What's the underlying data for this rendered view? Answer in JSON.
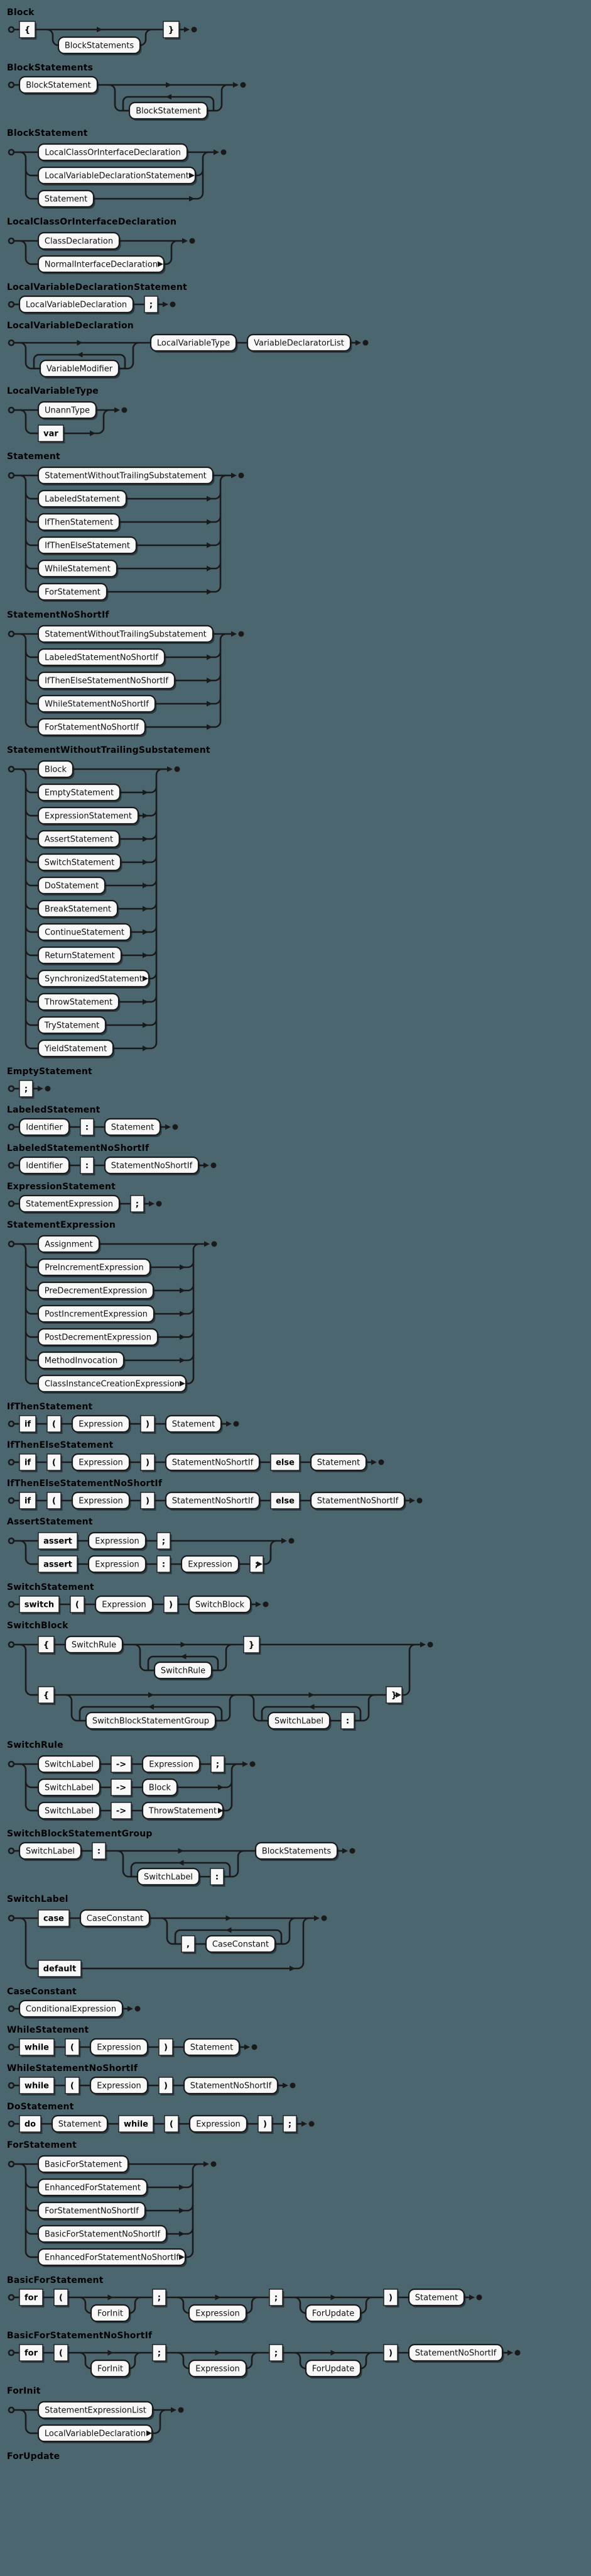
{
  "page": {
    "background": "#4c6670",
    "rail_color": "#1a1a1a",
    "box_fill": "#f8f8f8",
    "title_color": "#000000",
    "legend": {
      "start_icon": "start-circle",
      "end_icon": "end-dot",
      "nonterminal_shape": "rounded-box",
      "terminal_shape": "square-box"
    }
  },
  "rules": [
    {
      "name": "Block",
      "d": [
        "seq",
        [
          [
            "t",
            "{"
          ],
          [
            "opt",
            [
              "nt",
              "BlockStatements"
            ]
          ],
          [
            "t",
            "}"
          ]
        ]
      ]
    },
    {
      "name": "BlockStatements",
      "d": [
        "seq",
        [
          [
            "nt",
            "BlockStatement"
          ],
          [
            "opt",
            [
              "loop",
              [
                "nt",
                "BlockStatement"
              ]
            ]
          ]
        ]
      ]
    },
    {
      "name": "BlockStatement",
      "d": [
        "ch",
        [
          [
            "nt",
            "LocalClassOrInterfaceDeclaration"
          ],
          [
            "nt",
            "LocalVariableDeclarationStatement"
          ],
          [
            "nt",
            "Statement"
          ]
        ]
      ]
    },
    {
      "name": "LocalClassOrInterfaceDeclaration",
      "d": [
        "ch",
        [
          [
            "nt",
            "ClassDeclaration"
          ],
          [
            "nt",
            "NormalInterfaceDeclaration"
          ]
        ]
      ]
    },
    {
      "name": "LocalVariableDeclarationStatement",
      "d": [
        "seq",
        [
          [
            "nt",
            "LocalVariableDeclaration"
          ],
          [
            "t",
            ";"
          ]
        ]
      ]
    },
    {
      "name": "LocalVariableDeclaration",
      "d": [
        "seq",
        [
          [
            "opt",
            [
              "loop",
              [
                "nt",
                "VariableModifier"
              ]
            ]
          ],
          [
            "nt",
            "LocalVariableType"
          ],
          [
            "nt",
            "VariableDeclaratorList"
          ]
        ]
      ]
    },
    {
      "name": "LocalVariableType",
      "d": [
        "ch",
        [
          [
            "nt",
            "UnannType"
          ],
          [
            "t",
            "var"
          ]
        ]
      ]
    },
    {
      "name": "Statement",
      "d": [
        "ch",
        [
          [
            "nt",
            "StatementWithoutTrailingSubstatement"
          ],
          [
            "nt",
            "LabeledStatement"
          ],
          [
            "nt",
            "IfThenStatement"
          ],
          [
            "nt",
            "IfThenElseStatement"
          ],
          [
            "nt",
            "WhileStatement"
          ],
          [
            "nt",
            "ForStatement"
          ]
        ]
      ]
    },
    {
      "name": "StatementNoShortIf",
      "d": [
        "ch",
        [
          [
            "nt",
            "StatementWithoutTrailingSubstatement"
          ],
          [
            "nt",
            "LabeledStatementNoShortIf"
          ],
          [
            "nt",
            "IfThenElseStatementNoShortIf"
          ],
          [
            "nt",
            "WhileStatementNoShortIf"
          ],
          [
            "nt",
            "ForStatementNoShortIf"
          ]
        ]
      ]
    },
    {
      "name": "StatementWithoutTrailingSubstatement",
      "d": [
        "ch",
        [
          [
            "nt",
            "Block"
          ],
          [
            "nt",
            "EmptyStatement"
          ],
          [
            "nt",
            "ExpressionStatement"
          ],
          [
            "nt",
            "AssertStatement"
          ],
          [
            "nt",
            "SwitchStatement"
          ],
          [
            "nt",
            "DoStatement"
          ],
          [
            "nt",
            "BreakStatement"
          ],
          [
            "nt",
            "ContinueStatement"
          ],
          [
            "nt",
            "ReturnStatement"
          ],
          [
            "nt",
            "SynchronizedStatement"
          ],
          [
            "nt",
            "ThrowStatement"
          ],
          [
            "nt",
            "TryStatement"
          ],
          [
            "nt",
            "YieldStatement"
          ]
        ]
      ]
    },
    {
      "name": "EmptyStatement",
      "d": [
        "seq",
        [
          [
            "t",
            ";"
          ]
        ]
      ]
    },
    {
      "name": "LabeledStatement",
      "d": [
        "seq",
        [
          [
            "nt",
            "Identifier"
          ],
          [
            "t",
            ":"
          ],
          [
            "nt",
            "Statement"
          ]
        ]
      ]
    },
    {
      "name": "LabeledStatementNoShortIf",
      "d": [
        "seq",
        [
          [
            "nt",
            "Identifier"
          ],
          [
            "t",
            ":"
          ],
          [
            "nt",
            "StatementNoShortIf"
          ]
        ]
      ]
    },
    {
      "name": "ExpressionStatement",
      "d": [
        "seq",
        [
          [
            "nt",
            "StatementExpression"
          ],
          [
            "t",
            ";"
          ]
        ]
      ]
    },
    {
      "name": "StatementExpression",
      "d": [
        "ch",
        [
          [
            "nt",
            "Assignment"
          ],
          [
            "nt",
            "PreIncrementExpression"
          ],
          [
            "nt",
            "PreDecrementExpression"
          ],
          [
            "nt",
            "PostIncrementExpression"
          ],
          [
            "nt",
            "PostDecrementExpression"
          ],
          [
            "nt",
            "MethodInvocation"
          ],
          [
            "nt",
            "ClassInstanceCreationExpression"
          ]
        ]
      ]
    },
    {
      "name": "IfThenStatement",
      "d": [
        "seq",
        [
          [
            "t",
            "if"
          ],
          [
            "t",
            "("
          ],
          [
            "nt",
            "Expression"
          ],
          [
            "t",
            ")"
          ],
          [
            "nt",
            "Statement"
          ]
        ]
      ]
    },
    {
      "name": "IfThenElseStatement",
      "d": [
        "seq",
        [
          [
            "t",
            "if"
          ],
          [
            "t",
            "("
          ],
          [
            "nt",
            "Expression"
          ],
          [
            "t",
            ")"
          ],
          [
            "nt",
            "StatementNoShortIf"
          ],
          [
            "t",
            "else"
          ],
          [
            "nt",
            "Statement"
          ]
        ]
      ]
    },
    {
      "name": "IfThenElseStatementNoShortIf",
      "d": [
        "seq",
        [
          [
            "t",
            "if"
          ],
          [
            "t",
            "("
          ],
          [
            "nt",
            "Expression"
          ],
          [
            "t",
            ")"
          ],
          [
            "nt",
            "StatementNoShortIf"
          ],
          [
            "t",
            "else"
          ],
          [
            "nt",
            "StatementNoShortIf"
          ]
        ]
      ]
    },
    {
      "name": "AssertStatement",
      "d": [
        "ch",
        [
          [
            "seq",
            [
              [
                "t",
                "assert"
              ],
              [
                "nt",
                "Expression"
              ],
              [
                "t",
                ";"
              ]
            ]
          ],
          [
            "seq",
            [
              [
                "t",
                "assert"
              ],
              [
                "nt",
                "Expression"
              ],
              [
                "t",
                ":"
              ],
              [
                "nt",
                "Expression"
              ],
              [
                "t",
                ";"
              ]
            ]
          ]
        ]
      ]
    },
    {
      "name": "SwitchStatement",
      "d": [
        "seq",
        [
          [
            "t",
            "switch"
          ],
          [
            "t",
            "("
          ],
          [
            "nt",
            "Expression"
          ],
          [
            "t",
            ")"
          ],
          [
            "nt",
            "SwitchBlock"
          ]
        ]
      ]
    },
    {
      "name": "SwitchBlock",
      "d": [
        "ch",
        [
          [
            "seq",
            [
              [
                "t",
                "{"
              ],
              [
                "nt",
                "SwitchRule"
              ],
              [
                "opt",
                [
                  "loop",
                  [
                    "nt",
                    "SwitchRule"
                  ]
                ]
              ],
              [
                "t",
                "}"
              ]
            ]
          ],
          [
            "seq",
            [
              [
                "t",
                "{"
              ],
              [
                "opt",
                [
                  "loop",
                  [
                    "nt",
                    "SwitchBlockStatementGroup"
                  ]
                ]
              ],
              [
                "opt",
                [
                  "loop",
                  [
                    "seq",
                    [
                      [
                        "nt",
                        "SwitchLabel"
                      ],
                      [
                        "t",
                        ":"
                      ]
                    ]
                  ]
                ]
              ],
              [
                "t",
                "}"
              ]
            ]
          ]
        ]
      ]
    },
    {
      "name": "SwitchRule",
      "d": [
        "ch",
        [
          [
            "seq",
            [
              [
                "nt",
                "SwitchLabel"
              ],
              [
                "t",
                "->"
              ],
              [
                "nt",
                "Expression"
              ],
              [
                "t",
                ";"
              ]
            ]
          ],
          [
            "seq",
            [
              [
                "nt",
                "SwitchLabel"
              ],
              [
                "t",
                "->"
              ],
              [
                "nt",
                "Block"
              ]
            ]
          ],
          [
            "seq",
            [
              [
                "nt",
                "SwitchLabel"
              ],
              [
                "t",
                "->"
              ],
              [
                "nt",
                "ThrowStatement"
              ]
            ]
          ]
        ]
      ]
    },
    {
      "name": "SwitchBlockStatementGroup",
      "d": [
        "seq",
        [
          [
            "nt",
            "SwitchLabel"
          ],
          [
            "t",
            ":"
          ],
          [
            "opt",
            [
              "loop",
              [
                "seq",
                [
                  [
                    "nt",
                    "SwitchLabel"
                  ],
                  [
                    "t",
                    ":"
                  ]
                ]
              ]
            ]
          ],
          [
            "nt",
            "BlockStatements"
          ]
        ]
      ]
    },
    {
      "name": "SwitchLabel",
      "d": [
        "ch",
        [
          [
            "seq",
            [
              [
                "t",
                "case"
              ],
              [
                "nt",
                "CaseConstant"
              ],
              [
                "opt",
                [
                  "loop",
                  [
                    "seq",
                    [
                      [
                        "t",
                        ","
                      ],
                      [
                        "nt",
                        "CaseConstant"
                      ]
                    ]
                  ]
                ]
              ]
            ]
          ],
          [
            "seq",
            [
              [
                "t",
                "default"
              ]
            ]
          ]
        ]
      ]
    },
    {
      "name": "CaseConstant",
      "d": [
        "seq",
        [
          [
            "nt",
            "ConditionalExpression"
          ]
        ]
      ]
    },
    {
      "name": "WhileStatement",
      "d": [
        "seq",
        [
          [
            "t",
            "while"
          ],
          [
            "t",
            "("
          ],
          [
            "nt",
            "Expression"
          ],
          [
            "t",
            ")"
          ],
          [
            "nt",
            "Statement"
          ]
        ]
      ]
    },
    {
      "name": "WhileStatementNoShortIf",
      "d": [
        "seq",
        [
          [
            "t",
            "while"
          ],
          [
            "t",
            "("
          ],
          [
            "nt",
            "Expression"
          ],
          [
            "t",
            ")"
          ],
          [
            "nt",
            "StatementNoShortIf"
          ]
        ]
      ]
    },
    {
      "name": "DoStatement",
      "d": [
        "seq",
        [
          [
            "t",
            "do"
          ],
          [
            "nt",
            "Statement"
          ],
          [
            "t",
            "while"
          ],
          [
            "t",
            "("
          ],
          [
            "nt",
            "Expression"
          ],
          [
            "t",
            ")"
          ],
          [
            "t",
            ";"
          ]
        ]
      ]
    },
    {
      "name": "ForStatement",
      "d": [
        "ch",
        [
          [
            "nt",
            "BasicForStatement"
          ],
          [
            "nt",
            "EnhancedForStatement"
          ],
          [
            "nt",
            "ForStatementNoShortIf"
          ],
          [
            "nt",
            "BasicForStatementNoShortIf"
          ],
          [
            "nt",
            "EnhancedForStatementNoShortIf"
          ]
        ]
      ]
    },
    {
      "name": "BasicForStatement",
      "d": [
        "seq",
        [
          [
            "t",
            "for"
          ],
          [
            "t",
            "("
          ],
          [
            "opt",
            [
              "nt",
              "ForInit"
            ]
          ],
          [
            "t",
            ";"
          ],
          [
            "opt",
            [
              "nt",
              "Expression"
            ]
          ],
          [
            "t",
            ";"
          ],
          [
            "opt",
            [
              "nt",
              "ForUpdate"
            ]
          ],
          [
            "t",
            ")"
          ],
          [
            "nt",
            "Statement"
          ]
        ]
      ]
    },
    {
      "name": "BasicForStatementNoShortIf",
      "d": [
        "seq",
        [
          [
            "t",
            "for"
          ],
          [
            "t",
            "("
          ],
          [
            "opt",
            [
              "nt",
              "ForInit"
            ]
          ],
          [
            "t",
            ";"
          ],
          [
            "opt",
            [
              "nt",
              "Expression"
            ]
          ],
          [
            "t",
            ";"
          ],
          [
            "opt",
            [
              "nt",
              "ForUpdate"
            ]
          ],
          [
            "t",
            ")"
          ],
          [
            "nt",
            "StatementNoShortIf"
          ]
        ]
      ]
    },
    {
      "name": "ForInit",
      "d": [
        "ch",
        [
          [
            "nt",
            "StatementExpressionList"
          ],
          [
            "nt",
            "LocalVariableDeclaration"
          ]
        ]
      ]
    },
    {
      "name": "ForUpdate",
      "d": null
    }
  ]
}
